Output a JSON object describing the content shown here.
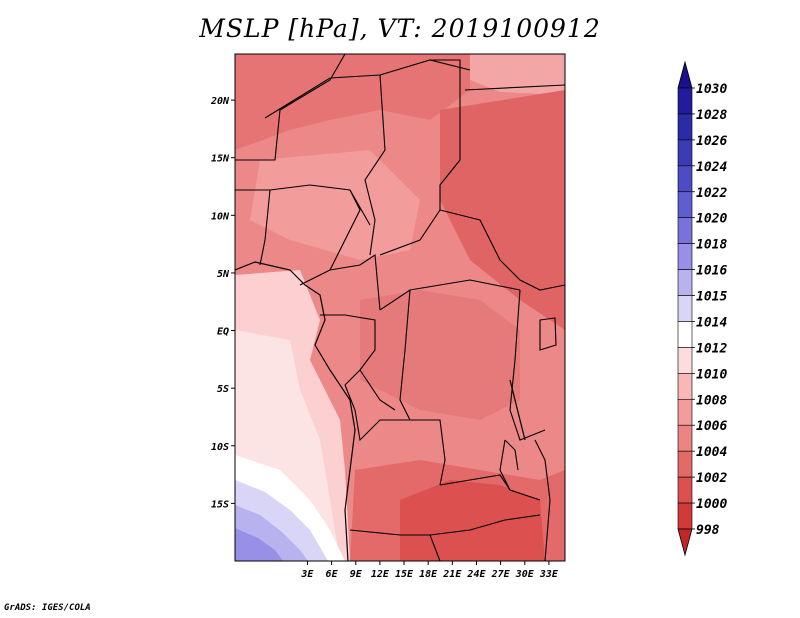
{
  "title": "MSLP [hPa], VT: 2019100912",
  "credit": "GrADS: IGES/COLA",
  "map": {
    "lon_range": [
      -6,
      35
    ],
    "lat_range": [
      -20,
      24
    ],
    "x_ticks": [
      {
        "lon": 3,
        "label": "3E"
      },
      {
        "lon": 6,
        "label": "6E"
      },
      {
        "lon": 9,
        "label": "9E"
      },
      {
        "lon": 12,
        "label": "12E"
      },
      {
        "lon": 15,
        "label": "15E"
      },
      {
        "lon": 18,
        "label": "18E"
      },
      {
        "lon": 21,
        "label": "21E"
      },
      {
        "lon": 24,
        "label": "24E"
      },
      {
        "lon": 27,
        "label": "27E"
      },
      {
        "lon": 30,
        "label": "30E"
      },
      {
        "lon": 33,
        "label": "33E"
      }
    ],
    "y_ticks": [
      {
        "lat": 20,
        "label": "20N"
      },
      {
        "lat": 15,
        "label": "15N"
      },
      {
        "lat": 10,
        "label": "10N"
      },
      {
        "lat": 5,
        "label": "5N"
      },
      {
        "lat": 0,
        "label": "EQ"
      },
      {
        "lat": -5,
        "label": "5S"
      },
      {
        "lat": -10,
        "label": "10S"
      },
      {
        "lat": -15,
        "label": "15S"
      }
    ]
  },
  "colorbar": {
    "labels": [
      "1030",
      "1028",
      "1026",
      "1024",
      "1022",
      "1020",
      "1018",
      "1016",
      "1015",
      "1014",
      "1012",
      "1010",
      "1008",
      "1006",
      "1004",
      "1002",
      "1000",
      "998"
    ],
    "colors": [
      "#1a0f8c",
      "#221c9c",
      "#2b2ba8",
      "#3b3bb5",
      "#4c4cc4",
      "#5e5ed0",
      "#7a72dc",
      "#9890e6",
      "#b8b2ef",
      "#d8d5f7",
      "#ffffff",
      "#fcdcdc",
      "#f8b8b8",
      "#f29c9c",
      "#ec8484",
      "#e46a6a",
      "#dc5050",
      "#d23a3a",
      "#c02828"
    ]
  }
}
